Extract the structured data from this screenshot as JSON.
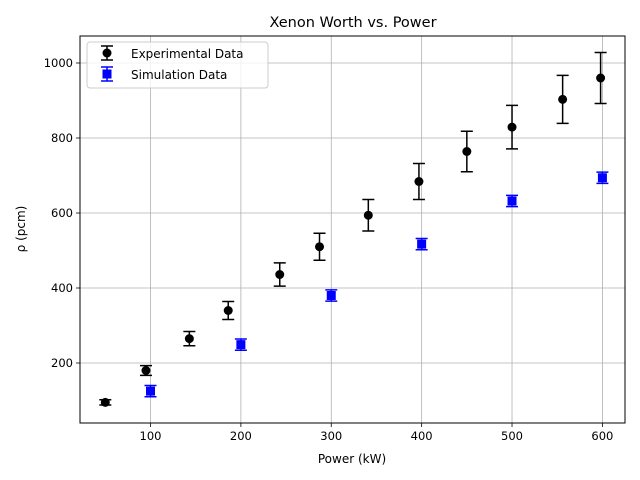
{
  "chart_data": {
    "type": "scatter",
    "title": "Xenon Worth vs. Power",
    "xlabel": "Power (kW)",
    "ylabel": "ρ (pcm)",
    "xlim": [
      22,
      625
    ],
    "ylim": [
      40,
      1072
    ],
    "xticks": [
      100,
      200,
      300,
      400,
      500,
      600
    ],
    "yticks": [
      200,
      400,
      600,
      800,
      1000
    ],
    "grid": true,
    "legend_position": "top-left",
    "series": [
      {
        "name": "Experimental Data",
        "marker": "circle",
        "color": "#000000",
        "points": [
          {
            "x": 50,
            "y": 95,
            "err": 7
          },
          {
            "x": 95,
            "y": 180,
            "err": 13
          },
          {
            "x": 143,
            "y": 265,
            "err": 19
          },
          {
            "x": 186,
            "y": 340,
            "err": 24
          },
          {
            "x": 243,
            "y": 436,
            "err": 31
          },
          {
            "x": 287,
            "y": 510,
            "err": 36
          },
          {
            "x": 341,
            "y": 594,
            "err": 42
          },
          {
            "x": 397,
            "y": 684,
            "err": 48
          },
          {
            "x": 450,
            "y": 764,
            "err": 54
          },
          {
            "x": 500,
            "y": 829,
            "err": 58
          },
          {
            "x": 556,
            "y": 903,
            "err": 64
          },
          {
            "x": 598,
            "y": 960,
            "err": 68
          }
        ]
      },
      {
        "name": "Simulation Data",
        "marker": "square",
        "color": "#0000ff",
        "points": [
          {
            "x": 100,
            "y": 125,
            "err": 15
          },
          {
            "x": 200,
            "y": 249,
            "err": 15
          },
          {
            "x": 300,
            "y": 380,
            "err": 15
          },
          {
            "x": 400,
            "y": 517,
            "err": 15
          },
          {
            "x": 500,
            "y": 632,
            "err": 15
          },
          {
            "x": 600,
            "y": 694,
            "err": 15
          }
        ]
      }
    ]
  }
}
